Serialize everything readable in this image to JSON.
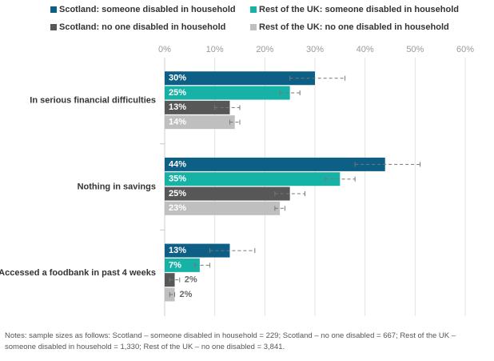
{
  "chart_data": {
    "type": "bar",
    "orientation": "horizontal",
    "categories": [
      "In serious financial difficulties",
      "Nothing in savings",
      "Accessed a foodbank in past 4 weeks"
    ],
    "series": [
      {
        "name": "Scotland: someone disabled in household",
        "color": "#0e5f86",
        "values": [
          30,
          44,
          13
        ],
        "value_labels": [
          "30%",
          "44%",
          "13%"
        ],
        "ci_low": [
          25,
          38,
          9
        ],
        "ci_high": [
          36,
          51,
          18
        ]
      },
      {
        "name": "Rest of the UK: someone disabled in household",
        "color": "#17b2a6",
        "values": [
          25,
          35,
          7
        ],
        "value_labels": [
          "25%",
          "35%",
          "7%"
        ],
        "ci_low": [
          23,
          32,
          6
        ],
        "ci_high": [
          27,
          38,
          9
        ]
      },
      {
        "name": "Scotland: no one disabled in household",
        "color": "#575757",
        "values": [
          13,
          25,
          2
        ],
        "value_labels": [
          "13%",
          "25%",
          "2%"
        ],
        "ci_low": [
          10,
          22,
          1
        ],
        "ci_high": [
          15,
          28,
          3
        ]
      },
      {
        "name": "Rest of the UK: no one disabled in household",
        "color": "#bfbfbf",
        "values": [
          14,
          23,
          2
        ],
        "value_labels": [
          "14%",
          "23%",
          "2%"
        ],
        "ci_low": [
          13,
          22,
          1
        ],
        "ci_high": [
          15,
          24,
          2
        ]
      }
    ],
    "xlim": [
      0,
      60
    ],
    "xticks": [
      {
        "value": 0,
        "label": "0%"
      },
      {
        "value": 10,
        "label": "10%"
      },
      {
        "value": 20,
        "label": "20%"
      },
      {
        "value": 30,
        "label": "30%"
      },
      {
        "value": 40,
        "label": "40%"
      },
      {
        "value": 50,
        "label": "50%"
      },
      {
        "value": 60,
        "label": "60%"
      }
    ],
    "grid": true,
    "legend": "top",
    "notes": "Notes: sample sizes as follows: Scotland – someone disabled in household = 229; Scotland – no one disabled = 667; Rest of the UK – someone disabled in household = 1,330; Rest of the UK – no one disabled = 3,841."
  }
}
